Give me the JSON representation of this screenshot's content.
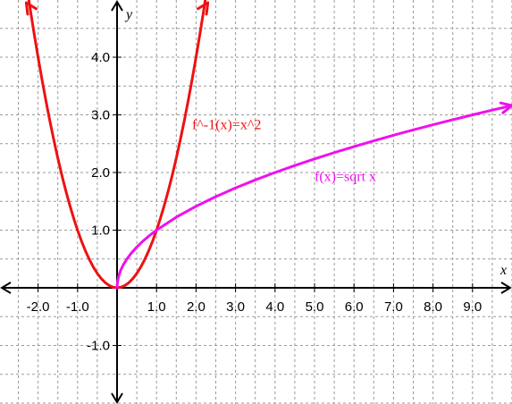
{
  "chart_data": {
    "type": "line",
    "title": "",
    "xlabel": "x",
    "ylabel": "y",
    "xlim": [
      -3,
      10
    ],
    "ylim": [
      -2,
      5
    ],
    "grid": true,
    "x_tick_step": 0.5,
    "y_tick_step": 0.5,
    "x_tick_labels": [
      {
        "value": -2,
        "text": "-2.0"
      },
      {
        "value": -1,
        "text": "-1.0"
      },
      {
        "value": 1,
        "text": "1.0"
      },
      {
        "value": 2,
        "text": "2.0"
      },
      {
        "value": 3,
        "text": "3.0"
      },
      {
        "value": 4,
        "text": "4.0"
      },
      {
        "value": 5,
        "text": "5.0"
      },
      {
        "value": 6,
        "text": "6.0"
      },
      {
        "value": 7,
        "text": "7.0"
      },
      {
        "value": 8,
        "text": "8.0"
      },
      {
        "value": 9,
        "text": "9.0"
      }
    ],
    "y_tick_labels": [
      {
        "value": 4,
        "text": "4.0"
      },
      {
        "value": 3,
        "text": "3.0"
      },
      {
        "value": 2,
        "text": "2.0"
      },
      {
        "value": 1,
        "text": "1.0"
      },
      {
        "value": -1,
        "text": "-1.0"
      }
    ],
    "series": [
      {
        "name": "f^-1(x)=x^2",
        "label": "f^-1(x)=x^2",
        "label_at": {
          "x": 1.9,
          "y": 2.75
        },
        "color": "#ee1111",
        "arrows": "both",
        "x": [
          -2.3,
          -2.2,
          -2.1,
          -2.0,
          -1.9,
          -1.8,
          -1.7,
          -1.6,
          -1.5,
          -1.4,
          -1.3,
          -1.2,
          -1.1,
          -1.0,
          -0.9,
          -0.8,
          -0.7,
          -0.6,
          -0.5,
          -0.4,
          -0.3,
          -0.2,
          -0.1,
          0.0,
          0.1,
          0.2,
          0.3,
          0.4,
          0.5,
          0.6,
          0.7,
          0.8,
          0.9,
          1.0,
          1.1,
          1.2,
          1.3,
          1.4,
          1.5,
          1.6,
          1.7,
          1.8,
          1.9,
          2.0,
          2.1,
          2.2,
          2.3
        ],
        "y": [
          5.29,
          4.84,
          4.41,
          4.0,
          3.61,
          3.24,
          2.89,
          2.56,
          2.25,
          1.96,
          1.69,
          1.44,
          1.21,
          1.0,
          0.81,
          0.64,
          0.49,
          0.36,
          0.25,
          0.16,
          0.09,
          0.04,
          0.01,
          0.0,
          0.01,
          0.04,
          0.09,
          0.16,
          0.25,
          0.36,
          0.49,
          0.64,
          0.81,
          1.0,
          1.21,
          1.44,
          1.69,
          1.96,
          2.25,
          2.56,
          2.89,
          3.24,
          3.61,
          4.0,
          4.41,
          4.84,
          5.29
        ]
      },
      {
        "name": "f(x)=sqrt x",
        "label": "f(x)=sqrt x",
        "label_at": {
          "x": 5.0,
          "y": 1.85
        },
        "color": "#ee11ee",
        "arrows": "end",
        "x": [
          0.0,
          0.01,
          0.04,
          0.09,
          0.16,
          0.25,
          0.36,
          0.49,
          0.64,
          0.81,
          1.0,
          1.5,
          2.0,
          2.5,
          3.0,
          3.5,
          4.0,
          4.5,
          5.0,
          5.5,
          6.0,
          6.5,
          7.0,
          7.5,
          8.0,
          8.5,
          9.0,
          9.5,
          10.0
        ],
        "y": [
          0.0,
          0.1,
          0.2,
          0.3,
          0.4,
          0.5,
          0.6,
          0.7,
          0.8,
          0.9,
          1.0,
          1.225,
          1.414,
          1.581,
          1.732,
          1.871,
          2.0,
          2.121,
          2.236,
          2.345,
          2.449,
          2.55,
          2.646,
          2.739,
          2.828,
          2.915,
          3.0,
          3.082,
          3.162
        ]
      }
    ]
  }
}
